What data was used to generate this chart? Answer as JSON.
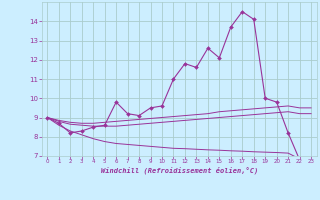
{
  "xlabel": "Windchill (Refroidissement éolien,°C)",
  "background_color": "#cceeff",
  "plot_bg_color": "#cceeff",
  "grid_color": "#aacccc",
  "line_color": "#993399",
  "x": [
    0,
    1,
    2,
    3,
    4,
    5,
    6,
    7,
    8,
    9,
    10,
    11,
    12,
    13,
    14,
    15,
    16,
    17,
    18,
    19,
    20,
    21,
    22,
    23
  ],
  "y_main": [
    9.0,
    8.7,
    8.2,
    8.3,
    8.5,
    8.6,
    9.8,
    9.2,
    9.1,
    9.5,
    9.6,
    11.0,
    11.8,
    11.6,
    12.6,
    12.1,
    13.7,
    14.5,
    14.1,
    10.0,
    9.8,
    8.2,
    6.8,
    6.7
  ],
  "y_line1": [
    9.0,
    8.85,
    8.75,
    8.7,
    8.7,
    8.75,
    8.8,
    8.85,
    8.9,
    8.95,
    9.0,
    9.05,
    9.1,
    9.15,
    9.2,
    9.3,
    9.35,
    9.4,
    9.45,
    9.5,
    9.55,
    9.6,
    9.5,
    9.5
  ],
  "y_line2": [
    9.0,
    8.8,
    8.65,
    8.6,
    8.55,
    8.55,
    8.55,
    8.6,
    8.65,
    8.7,
    8.75,
    8.8,
    8.85,
    8.9,
    8.95,
    9.0,
    9.05,
    9.1,
    9.15,
    9.2,
    9.25,
    9.3,
    9.2,
    9.2
  ],
  "y_line3": [
    9.0,
    8.6,
    8.3,
    8.1,
    7.9,
    7.75,
    7.65,
    7.6,
    7.55,
    7.5,
    7.45,
    7.4,
    7.38,
    7.35,
    7.32,
    7.3,
    7.27,
    7.25,
    7.22,
    7.2,
    7.18,
    7.15,
    6.85,
    6.75
  ],
  "ylim": [
    7,
    15
  ],
  "xlim": [
    -0.5,
    23.5
  ],
  "yticks": [
    7,
    8,
    9,
    10,
    11,
    12,
    13,
    14
  ],
  "xticks": [
    0,
    1,
    2,
    3,
    4,
    5,
    6,
    7,
    8,
    9,
    10,
    11,
    12,
    13,
    14,
    15,
    16,
    17,
    18,
    19,
    20,
    21,
    22,
    23
  ]
}
